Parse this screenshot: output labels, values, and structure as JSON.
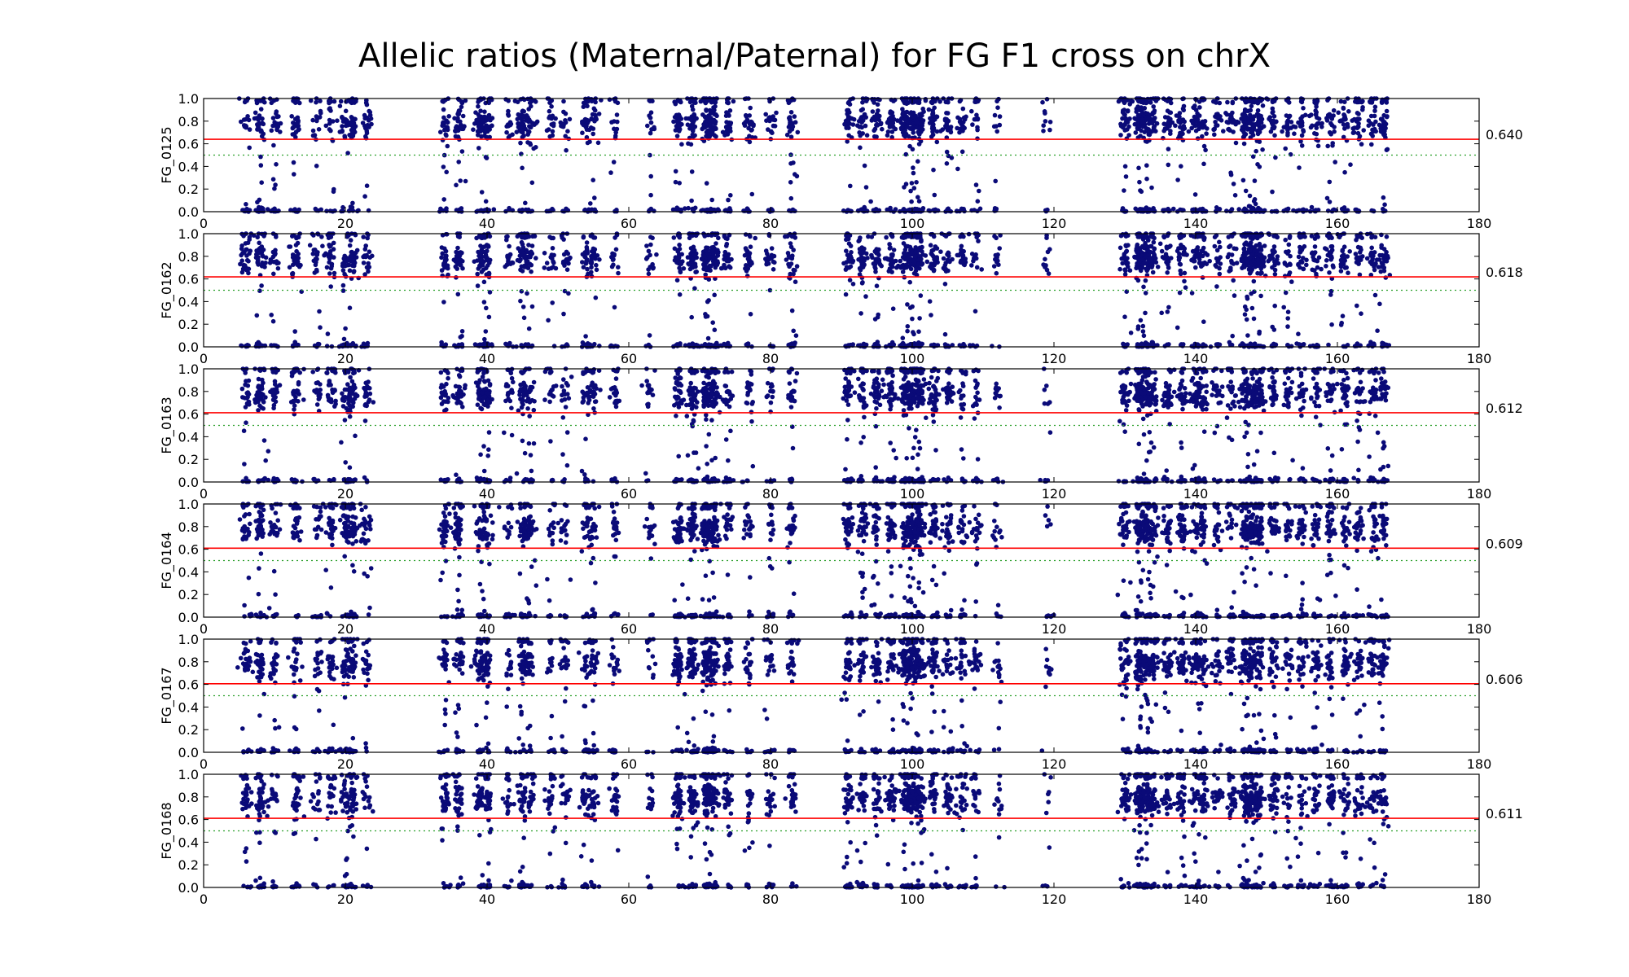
{
  "title": "Allelic ratios (Maternal/Paternal) for FG F1 cross on chrX",
  "colors": {
    "points": "#0a0a78",
    "mean_line": "#ff0000",
    "half_line": "#2ca02c",
    "axes": "#000000"
  },
  "chart_data": [
    {
      "type": "scatter",
      "ylabel": "FG_0125",
      "mean": 0.64,
      "mean_label": "0.640",
      "xlim": [
        0,
        180
      ],
      "ylim": [
        0.0,
        1.0
      ],
      "xticks": [
        "0",
        "20",
        "40",
        "60",
        "80",
        "100",
        "120",
        "140",
        "160",
        "180"
      ],
      "yticks": [
        "0.0",
        "0.2",
        "0.4",
        "0.6",
        "0.8",
        "1.0"
      ],
      "reference_line": 0.5,
      "grid": false
    },
    {
      "type": "scatter",
      "ylabel": "FG_0162",
      "mean": 0.618,
      "mean_label": "0.618",
      "xlim": [
        0,
        180
      ],
      "ylim": [
        0.0,
        1.0
      ],
      "xticks": [
        "0",
        "20",
        "40",
        "60",
        "80",
        "100",
        "120",
        "140",
        "160",
        "180"
      ],
      "yticks": [
        "0.0",
        "0.2",
        "0.4",
        "0.6",
        "0.8",
        "1.0"
      ],
      "reference_line": 0.5,
      "grid": false
    },
    {
      "type": "scatter",
      "ylabel": "FG_0163",
      "mean": 0.612,
      "mean_label": "0.612",
      "xlim": [
        0,
        180
      ],
      "ylim": [
        0.0,
        1.0
      ],
      "xticks": [
        "0",
        "20",
        "40",
        "60",
        "80",
        "100",
        "120",
        "140",
        "160",
        "180"
      ],
      "yticks": [
        "0.0",
        "0.2",
        "0.4",
        "0.6",
        "0.8",
        "1.0"
      ],
      "reference_line": 0.5,
      "grid": false
    },
    {
      "type": "scatter",
      "ylabel": "FG_0164",
      "mean": 0.609,
      "mean_label": "0.609",
      "xlim": [
        0,
        180
      ],
      "ylim": [
        0.0,
        1.0
      ],
      "xticks": [
        "0",
        "20",
        "40",
        "60",
        "80",
        "100",
        "120",
        "140",
        "160",
        "180"
      ],
      "yticks": [
        "0.0",
        "0.2",
        "0.4",
        "0.6",
        "0.8",
        "1.0"
      ],
      "reference_line": 0.5,
      "grid": false
    },
    {
      "type": "scatter",
      "ylabel": "FG_0167",
      "mean": 0.606,
      "mean_label": "0.606",
      "xlim": [
        0,
        180
      ],
      "ylim": [
        0.0,
        1.0
      ],
      "xticks": [
        "0",
        "20",
        "40",
        "60",
        "80",
        "100",
        "120",
        "140",
        "160",
        "180"
      ],
      "yticks": [
        "0.0",
        "0.2",
        "0.4",
        "0.6",
        "0.8",
        "1.0"
      ],
      "reference_line": 0.5,
      "grid": false
    },
    {
      "type": "scatter",
      "ylabel": "FG_0168",
      "mean": 0.611,
      "mean_label": "0.611",
      "xlim": [
        0,
        180
      ],
      "ylim": [
        0.0,
        1.0
      ],
      "xticks": [
        "0",
        "20",
        "40",
        "60",
        "80",
        "100",
        "120",
        "140",
        "160",
        "180"
      ],
      "yticks": [
        "0.0",
        "0.2",
        "0.4",
        "0.6",
        "0.8",
        "1.0"
      ],
      "reference_line": 0.5,
      "grid": false
    }
  ],
  "density_clusters": [
    {
      "x": 6,
      "weight": 6
    },
    {
      "x": 8,
      "weight": 9
    },
    {
      "x": 10,
      "weight": 5
    },
    {
      "x": 13,
      "weight": 7
    },
    {
      "x": 16,
      "weight": 4
    },
    {
      "x": 18,
      "weight": 5
    },
    {
      "x": 20,
      "weight": 6
    },
    {
      "x": 21,
      "weight": 7
    },
    {
      "x": 23,
      "weight": 4
    },
    {
      "x": 34,
      "weight": 6
    },
    {
      "x": 36,
      "weight": 8
    },
    {
      "x": 39,
      "weight": 7
    },
    {
      "x": 40,
      "weight": 8
    },
    {
      "x": 43,
      "weight": 4
    },
    {
      "x": 45,
      "weight": 7
    },
    {
      "x": 46,
      "weight": 6
    },
    {
      "x": 49,
      "weight": 4
    },
    {
      "x": 51,
      "weight": 4
    },
    {
      "x": 54,
      "weight": 6
    },
    {
      "x": 55,
      "weight": 5
    },
    {
      "x": 58,
      "weight": 4
    },
    {
      "x": 63,
      "weight": 3
    },
    {
      "x": 67,
      "weight": 8
    },
    {
      "x": 69,
      "weight": 10
    },
    {
      "x": 71,
      "weight": 12
    },
    {
      "x": 72,
      "weight": 11
    },
    {
      "x": 74,
      "weight": 6
    },
    {
      "x": 77,
      "weight": 5
    },
    {
      "x": 80,
      "weight": 4
    },
    {
      "x": 83,
      "weight": 6
    },
    {
      "x": 91,
      "weight": 8
    },
    {
      "x": 93,
      "weight": 7
    },
    {
      "x": 95,
      "weight": 7
    },
    {
      "x": 97,
      "weight": 8
    },
    {
      "x": 99,
      "weight": 10
    },
    {
      "x": 100,
      "weight": 12
    },
    {
      "x": 101,
      "weight": 11
    },
    {
      "x": 103,
      "weight": 8
    },
    {
      "x": 105,
      "weight": 6
    },
    {
      "x": 107,
      "weight": 5
    },
    {
      "x": 109,
      "weight": 4
    },
    {
      "x": 112,
      "weight": 3
    },
    {
      "x": 119,
      "weight": 2
    },
    {
      "x": 130,
      "weight": 8
    },
    {
      "x": 132,
      "weight": 12
    },
    {
      "x": 133,
      "weight": 11
    },
    {
      "x": 134,
      "weight": 7
    },
    {
      "x": 136,
      "weight": 6
    },
    {
      "x": 138,
      "weight": 7
    },
    {
      "x": 140,
      "weight": 6
    },
    {
      "x": 141,
      "weight": 6
    },
    {
      "x": 143,
      "weight": 5
    },
    {
      "x": 145,
      "weight": 5
    },
    {
      "x": 147,
      "weight": 9
    },
    {
      "x": 148,
      "weight": 11
    },
    {
      "x": 149,
      "weight": 10
    },
    {
      "x": 151,
      "weight": 6
    },
    {
      "x": 153,
      "weight": 5
    },
    {
      "x": 155,
      "weight": 6
    },
    {
      "x": 157,
      "weight": 6
    },
    {
      "x": 159,
      "weight": 6
    },
    {
      "x": 161,
      "weight": 6
    },
    {
      "x": 163,
      "weight": 6
    },
    {
      "x": 165,
      "weight": 5
    },
    {
      "x": 166.5,
      "weight": 7
    }
  ]
}
